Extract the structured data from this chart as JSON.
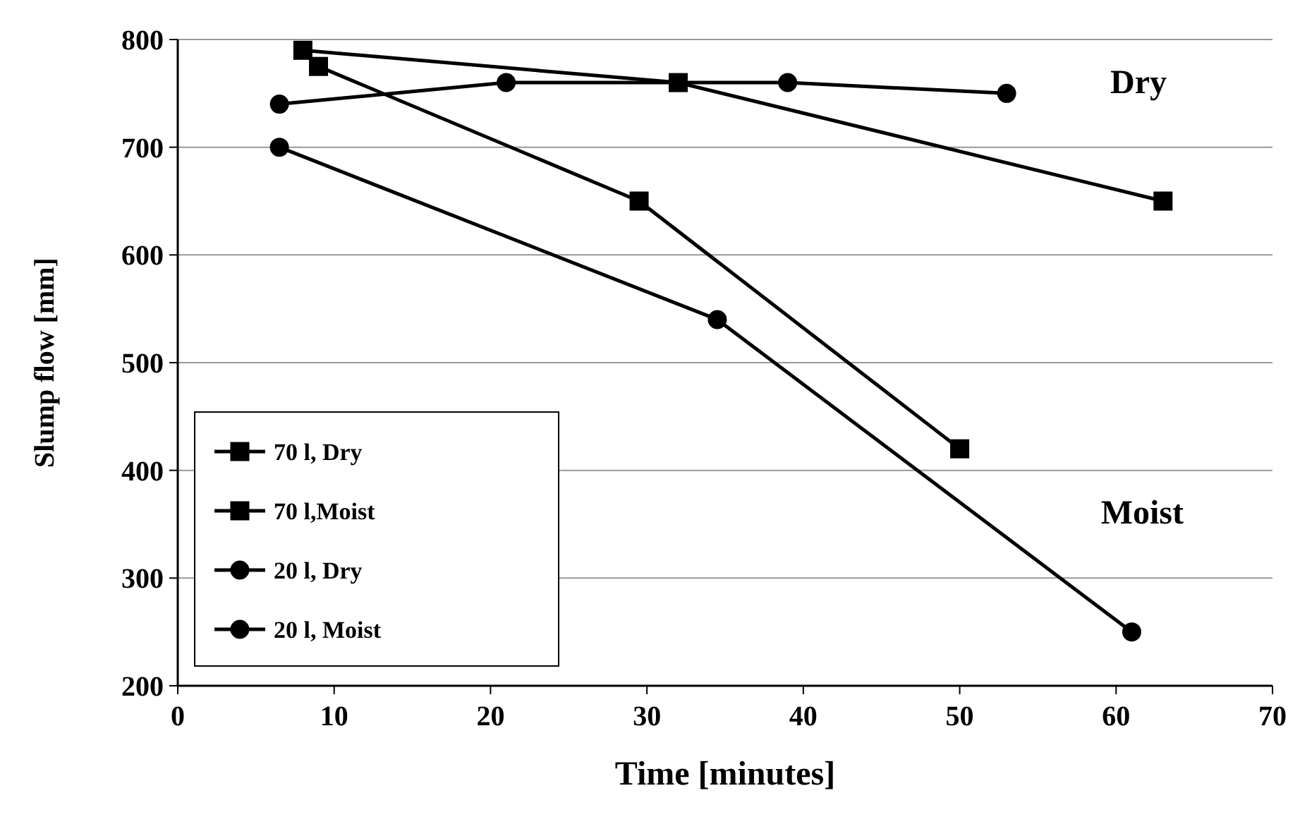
{
  "chart_data": {
    "type": "line",
    "xlabel": "Time [minutes]",
    "ylabel": "Slump flow [mm]",
    "xlim": [
      0,
      70
    ],
    "xticks": [
      0,
      10,
      20,
      30,
      40,
      50,
      60,
      70
    ],
    "ylim": [
      200,
      800
    ],
    "yticks": [
      200,
      300,
      400,
      500,
      600,
      700,
      800
    ],
    "grid": "y",
    "legend": "bottom left",
    "line_style": "solid",
    "series": [
      {
        "name": "70 l, Dry",
        "color": "#000000",
        "marker": "square",
        "x": [
          8,
          32,
          63
        ],
        "values": [
          790,
          760,
          650
        ]
      },
      {
        "name": "70 l,Moist",
        "color": "#000000",
        "marker": "square",
        "x": [
          9,
          29.5,
          50
        ],
        "values": [
          775,
          650,
          420
        ]
      },
      {
        "name": "20 l, Dry",
        "color": "#000000",
        "marker": "circle",
        "x": [
          6.5,
          21,
          39,
          53
        ],
        "values": [
          740,
          760,
          760,
          750
        ]
      },
      {
        "name": "20 l, Moist",
        "color": "#000000",
        "marker": "circle",
        "x": [
          6.5,
          34.5,
          61
        ],
        "values": [
          700,
          540,
          250
        ]
      }
    ],
    "annotations": [
      "Dry",
      "Moist"
    ]
  }
}
